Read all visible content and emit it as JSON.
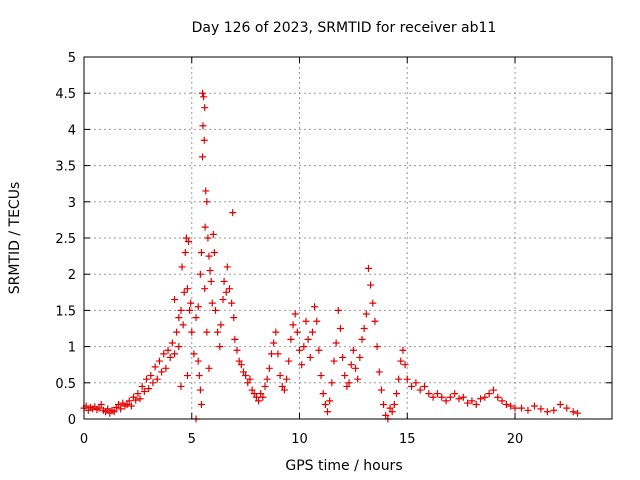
{
  "chart_data": {
    "type": "scatter",
    "title": "Day 126 of 2023, SRMTID for receiver ab11",
    "xlabel": "GPS time / hours",
    "ylabel": "SRMTID / TECUs",
    "xlim": [
      0,
      24.5
    ],
    "ylim": [
      0,
      5
    ],
    "grid": true,
    "marker": "+",
    "color": "#e00000",
    "xticks": [
      0,
      5,
      10,
      15,
      20
    ],
    "yticks": [
      0,
      0.5,
      1,
      1.5,
      2,
      2.5,
      3,
      3.5,
      4,
      4.5,
      5
    ],
    "xtick_labels": [
      "0",
      "5",
      "10",
      "15",
      "20"
    ],
    "ytick_labels": [
      "0",
      "0.5",
      "1",
      "1.5",
      "2",
      "2.5",
      "3",
      "3.5",
      "4",
      "4.5",
      "5"
    ],
    "series": [
      {
        "name": "SRMTID",
        "points": [
          [
            0.0,
            0.15
          ],
          [
            0.1,
            0.18
          ],
          [
            0.2,
            0.12
          ],
          [
            0.3,
            0.16
          ],
          [
            0.4,
            0.14
          ],
          [
            0.5,
            0.17
          ],
          [
            0.6,
            0.13
          ],
          [
            0.7,
            0.15
          ],
          [
            0.8,
            0.2
          ],
          [
            0.9,
            0.12
          ],
          [
            1.0,
            0.1
          ],
          [
            1.1,
            0.14
          ],
          [
            1.2,
            0.08
          ],
          [
            1.3,
            0.12
          ],
          [
            1.4,
            0.1
          ],
          [
            1.5,
            0.16
          ],
          [
            1.6,
            0.2
          ],
          [
            1.7,
            0.14
          ],
          [
            1.8,
            0.22
          ],
          [
            1.9,
            0.18
          ],
          [
            2.0,
            0.2
          ],
          [
            2.1,
            0.25
          ],
          [
            2.2,
            0.18
          ],
          [
            2.3,
            0.3
          ],
          [
            2.4,
            0.26
          ],
          [
            2.5,
            0.35
          ],
          [
            2.6,
            0.28
          ],
          [
            2.7,
            0.45
          ],
          [
            2.8,
            0.38
          ],
          [
            2.9,
            0.55
          ],
          [
            3.0,
            0.42
          ],
          [
            3.1,
            0.6
          ],
          [
            3.2,
            0.5
          ],
          [
            3.3,
            0.72
          ],
          [
            3.4,
            0.55
          ],
          [
            3.5,
            0.8
          ],
          [
            3.6,
            0.65
          ],
          [
            3.7,
            0.9
          ],
          [
            3.8,
            0.7
          ],
          [
            3.9,
            0.95
          ],
          [
            4.0,
            0.85
          ],
          [
            4.1,
            1.05
          ],
          [
            4.2,
            0.9
          ],
          [
            4.3,
            1.2
          ],
          [
            4.4,
            1.0
          ],
          [
            4.5,
            1.5
          ],
          [
            4.6,
            1.3
          ],
          [
            4.7,
            2.3
          ],
          [
            4.8,
            1.8
          ],
          [
            4.9,
            1.5
          ],
          [
            4.55,
            2.1
          ],
          [
            4.75,
            2.5
          ],
          [
            4.85,
            2.45
          ],
          [
            4.65,
            1.75
          ],
          [
            4.95,
            1.6
          ],
          [
            4.4,
            1.4
          ],
          [
            4.2,
            1.65
          ],
          [
            4.5,
            0.45
          ],
          [
            4.8,
            0.6
          ],
          [
            5.0,
            1.2
          ],
          [
            5.1,
            0.9
          ],
          [
            5.2,
            1.4
          ],
          [
            5.3,
            1.55
          ],
          [
            5.4,
            2.0
          ],
          [
            5.45,
            2.3
          ],
          [
            5.5,
            4.5
          ],
          [
            5.55,
            4.45
          ],
          [
            5.6,
            4.3
          ],
          [
            5.52,
            4.05
          ],
          [
            5.58,
            3.85
          ],
          [
            5.5,
            3.62
          ],
          [
            5.65,
            3.15
          ],
          [
            5.7,
            3.0
          ],
          [
            5.62,
            2.65
          ],
          [
            5.75,
            2.5
          ],
          [
            5.8,
            2.25
          ],
          [
            5.85,
            2.05
          ],
          [
            5.9,
            1.9
          ],
          [
            5.95,
            1.6
          ],
          [
            5.3,
            0.8
          ],
          [
            5.35,
            0.6
          ],
          [
            5.4,
            0.4
          ],
          [
            5.45,
            0.2
          ],
          [
            5.2,
            0.0
          ],
          [
            5.6,
            1.8
          ],
          [
            5.7,
            1.2
          ],
          [
            5.8,
            0.7
          ],
          [
            6.0,
            2.55
          ],
          [
            6.05,
            2.3
          ],
          [
            6.1,
            1.5
          ],
          [
            6.2,
            1.2
          ],
          [
            6.3,
            1.0
          ],
          [
            6.35,
            1.3
          ],
          [
            6.45,
            1.65
          ],
          [
            6.5,
            1.9
          ],
          [
            6.6,
            1.75
          ],
          [
            6.65,
            2.1
          ],
          [
            6.75,
            1.8
          ],
          [
            6.85,
            1.6
          ],
          [
            6.9,
            2.85
          ],
          [
            6.95,
            1.4
          ],
          [
            7.0,
            1.1
          ],
          [
            7.1,
            0.95
          ],
          [
            7.2,
            0.8
          ],
          [
            7.3,
            0.75
          ],
          [
            7.4,
            0.65
          ],
          [
            7.5,
            0.6
          ],
          [
            7.6,
            0.5
          ],
          [
            7.7,
            0.55
          ],
          [
            7.8,
            0.4
          ],
          [
            7.9,
            0.35
          ],
          [
            8.0,
            0.3
          ],
          [
            8.1,
            0.25
          ],
          [
            8.2,
            0.35
          ],
          [
            8.3,
            0.3
          ],
          [
            8.4,
            0.45
          ],
          [
            8.5,
            0.55
          ],
          [
            8.6,
            0.7
          ],
          [
            8.7,
            0.9
          ],
          [
            8.8,
            1.05
          ],
          [
            8.9,
            1.2
          ],
          [
            9.0,
            0.9
          ],
          [
            9.1,
            0.6
          ],
          [
            9.2,
            0.45
          ],
          [
            9.3,
            0.4
          ],
          [
            9.4,
            0.55
          ],
          [
            9.5,
            0.8
          ],
          [
            9.6,
            1.1
          ],
          [
            9.7,
            1.3
          ],
          [
            9.8,
            1.45
          ],
          [
            9.9,
            1.2
          ],
          [
            10.0,
            0.95
          ],
          [
            10.1,
            0.75
          ],
          [
            10.2,
            1.0
          ],
          [
            10.3,
            1.35
          ],
          [
            10.4,
            1.1
          ],
          [
            10.5,
            0.85
          ],
          [
            10.6,
            1.2
          ],
          [
            10.7,
            1.55
          ],
          [
            10.8,
            1.35
          ],
          [
            10.9,
            0.95
          ],
          [
            11.0,
            0.6
          ],
          [
            11.1,
            0.35
          ],
          [
            11.2,
            0.2
          ],
          [
            11.3,
            0.1
          ],
          [
            11.4,
            0.25
          ],
          [
            11.5,
            0.5
          ],
          [
            11.6,
            0.8
          ],
          [
            11.7,
            1.05
          ],
          [
            11.8,
            1.5
          ],
          [
            11.9,
            1.25
          ],
          [
            12.0,
            0.85
          ],
          [
            12.1,
            0.6
          ],
          [
            12.2,
            0.45
          ],
          [
            12.3,
            0.5
          ],
          [
            12.4,
            0.75
          ],
          [
            12.5,
            0.95
          ],
          [
            12.6,
            0.7
          ],
          [
            12.7,
            0.55
          ],
          [
            12.8,
            0.85
          ],
          [
            12.9,
            1.1
          ],
          [
            13.0,
            1.25
          ],
          [
            13.1,
            1.45
          ],
          [
            13.2,
            2.08
          ],
          [
            13.3,
            1.85
          ],
          [
            13.4,
            1.6
          ],
          [
            13.5,
            1.35
          ],
          [
            13.6,
            1.0
          ],
          [
            13.7,
            0.65
          ],
          [
            13.8,
            0.4
          ],
          [
            13.9,
            0.2
          ],
          [
            14.0,
            0.05
          ],
          [
            14.1,
            0.0
          ],
          [
            14.2,
            0.15
          ],
          [
            14.3,
            0.1
          ],
          [
            14.4,
            0.2
          ],
          [
            14.5,
            0.35
          ],
          [
            14.6,
            0.55
          ],
          [
            14.7,
            0.8
          ],
          [
            14.8,
            0.95
          ],
          [
            14.9,
            0.75
          ],
          [
            15.0,
            0.55
          ],
          [
            15.2,
            0.45
          ],
          [
            15.4,
            0.5
          ],
          [
            15.6,
            0.4
          ],
          [
            15.8,
            0.45
          ],
          [
            16.0,
            0.35
          ],
          [
            16.2,
            0.3
          ],
          [
            16.4,
            0.35
          ],
          [
            16.6,
            0.3
          ],
          [
            16.8,
            0.25
          ],
          [
            17.0,
            0.3
          ],
          [
            17.2,
            0.35
          ],
          [
            17.4,
            0.28
          ],
          [
            17.6,
            0.3
          ],
          [
            17.8,
            0.22
          ],
          [
            18.0,
            0.25
          ],
          [
            18.2,
            0.2
          ],
          [
            18.4,
            0.28
          ],
          [
            18.6,
            0.3
          ],
          [
            18.8,
            0.35
          ],
          [
            19.0,
            0.4
          ],
          [
            19.2,
            0.3
          ],
          [
            19.4,
            0.25
          ],
          [
            19.6,
            0.2
          ],
          [
            19.8,
            0.18
          ],
          [
            20.0,
            0.15
          ],
          [
            20.3,
            0.15
          ],
          [
            20.6,
            0.12
          ],
          [
            20.9,
            0.18
          ],
          [
            21.2,
            0.14
          ],
          [
            21.5,
            0.1
          ],
          [
            21.8,
            0.12
          ],
          [
            22.1,
            0.2
          ],
          [
            22.4,
            0.15
          ],
          [
            22.7,
            0.1
          ],
          [
            22.9,
            0.08
          ]
        ]
      }
    ]
  }
}
